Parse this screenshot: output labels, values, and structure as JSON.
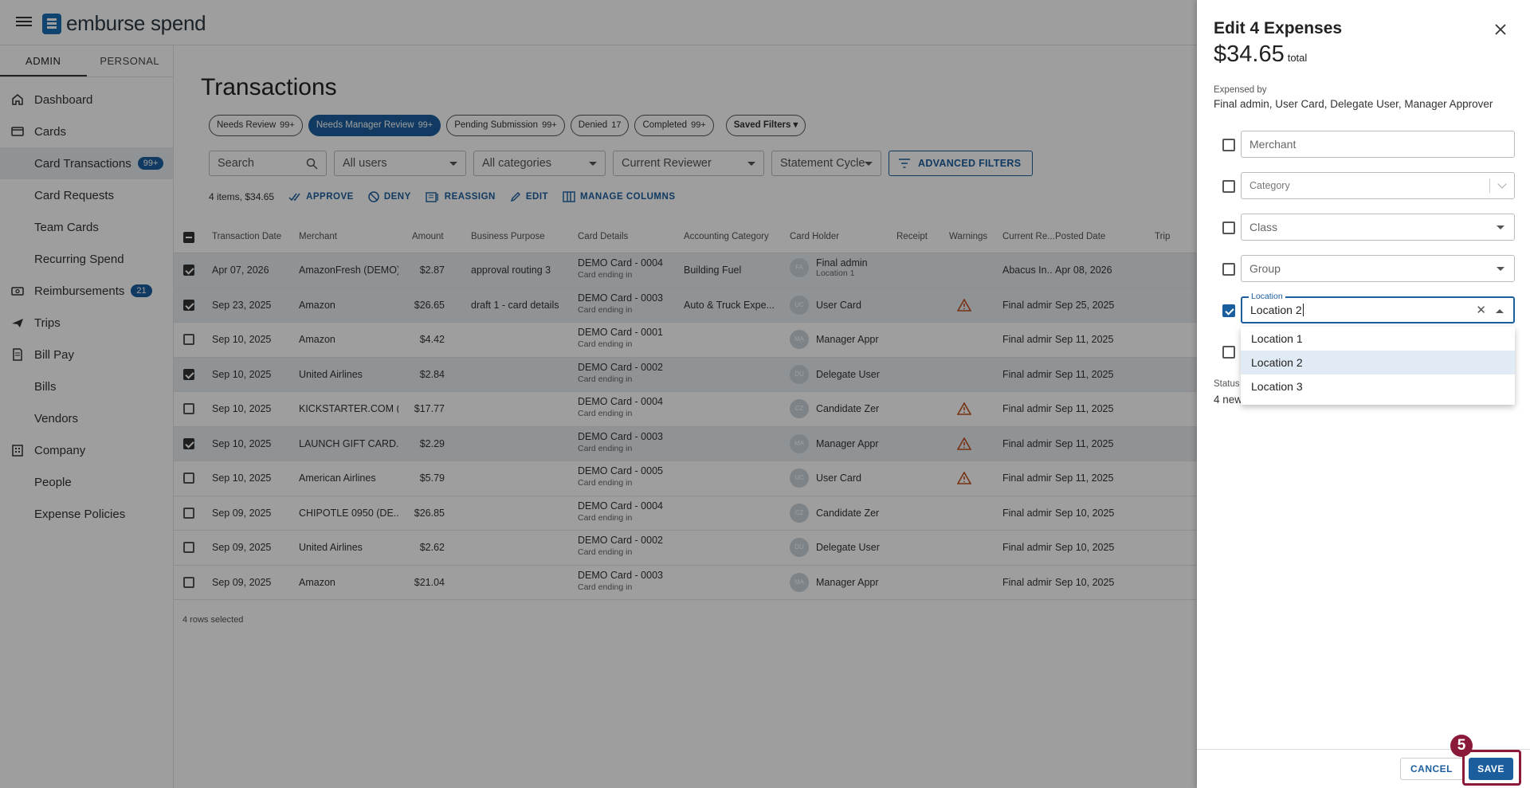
{
  "app": {
    "brand": "emburse spend"
  },
  "sidebar": {
    "tabs": [
      "ADMIN",
      "PERSONAL"
    ],
    "items": [
      {
        "label": "Dashboard",
        "icon": "home-icon"
      },
      {
        "label": "Cards",
        "icon": "card-icon"
      },
      {
        "label": "Card Transactions",
        "badge": "99+"
      },
      {
        "label": "Card Requests"
      },
      {
        "label": "Team Cards"
      },
      {
        "label": "Recurring Spend"
      },
      {
        "label": "Reimbursements",
        "icon": "money-icon",
        "badge": "21"
      },
      {
        "label": "Trips",
        "icon": "plane-icon"
      },
      {
        "label": "Bill Pay",
        "icon": "bill-icon"
      },
      {
        "label": "Bills"
      },
      {
        "label": "Vendors"
      },
      {
        "label": "Company",
        "icon": "building-icon"
      },
      {
        "label": "People"
      },
      {
        "label": "Expense Policies"
      }
    ]
  },
  "main": {
    "title": "Transactions",
    "chips": [
      {
        "label": "Needs Review",
        "count": "99+"
      },
      {
        "label": "Needs Manager Review",
        "count": "99+"
      },
      {
        "label": "Pending Submission",
        "count": "99+"
      },
      {
        "label": "Denied",
        "count": "17"
      },
      {
        "label": "Completed",
        "count": "99+"
      },
      {
        "label": "Saved Filters"
      }
    ],
    "filters": {
      "search_placeholder": "Search",
      "users": "All users",
      "categories": "All categories",
      "reviewer": "Current Reviewer",
      "cycle": "Statement Cycle",
      "advanced": "ADVANCED FILTERS"
    },
    "actions": {
      "summary": "4 items, $34.65",
      "approve": "APPROVE",
      "deny": "DENY",
      "reassign": "REASSIGN",
      "edit": "EDIT",
      "manage": "MANAGE COLUMNS"
    },
    "columns": [
      "Transaction Date",
      "Merchant",
      "Amount",
      "Business Purpose",
      "Card Details",
      "Accounting Category",
      "Card Holder",
      "Receipt",
      "Warnings",
      "Current Re...",
      "Posted Date",
      "Trip"
    ],
    "rows": [
      {
        "selected": true,
        "date": "Apr 07, 2026",
        "merchant": "AmazonFresh (DEMO)",
        "amount": "$2.87",
        "purpose": "approval routing 3",
        "card": "DEMO Card - 0004",
        "card_sub": "Card ending in",
        "category": "Building Fuel",
        "initials": "FA",
        "holder": "Final admin",
        "holder_sub": "Location 1",
        "warning": false,
        "reviewer": "Abacus In...",
        "posted": "Apr 08, 2026"
      },
      {
        "selected": true,
        "date": "Sep 23, 2025",
        "merchant": "Amazon",
        "amount": "$26.65",
        "purpose": "draft 1 - card details",
        "card": "DEMO Card - 0003",
        "card_sub": "Card ending in",
        "category": "Auto & Truck Expe...",
        "initials": "UC",
        "holder": "User Card",
        "holder_sub": "",
        "warning": true,
        "reviewer": "Final admin",
        "posted": "Sep 25, 2025"
      },
      {
        "selected": false,
        "date": "Sep 10, 2025",
        "merchant": "Amazon",
        "amount": "$4.42",
        "purpose": "",
        "card": "DEMO Card - 0001",
        "card_sub": "Card ending in",
        "category": "",
        "initials": "MA",
        "holder": "Manager Appr",
        "holder_sub": "",
        "warning": false,
        "reviewer": "Final admin",
        "posted": "Sep 11, 2025"
      },
      {
        "selected": true,
        "date": "Sep 10, 2025",
        "merchant": "United Airlines",
        "amount": "$2.84",
        "purpose": "",
        "card": "DEMO Card - 0002",
        "card_sub": "Card ending in",
        "category": "",
        "initials": "DU",
        "holder": "Delegate User",
        "holder_sub": "",
        "warning": false,
        "reviewer": "Final admin",
        "posted": "Sep 11, 2025"
      },
      {
        "selected": false,
        "date": "Sep 10, 2025",
        "merchant": "KICKSTARTER.COM (...",
        "amount": "$17.77",
        "purpose": "",
        "card": "DEMO Card - 0004",
        "card_sub": "Card ending in",
        "category": "",
        "initials": "CZ",
        "holder": "Candidate Zer",
        "holder_sub": "",
        "warning": true,
        "reviewer": "Final admin",
        "posted": "Sep 11, 2025"
      },
      {
        "selected": true,
        "date": "Sep 10, 2025",
        "merchant": "LAUNCH GIFT CARD...",
        "amount": "$2.29",
        "purpose": "",
        "card": "DEMO Card - 0003",
        "card_sub": "Card ending in",
        "category": "",
        "initials": "MA",
        "holder": "Manager Appr",
        "holder_sub": "",
        "warning": true,
        "reviewer": "Final admin",
        "posted": "Sep 11, 2025"
      },
      {
        "selected": false,
        "date": "Sep 10, 2025",
        "merchant": "American Airlines",
        "amount": "$5.79",
        "purpose": "",
        "card": "DEMO Card - 0005",
        "card_sub": "Card ending in",
        "category": "",
        "initials": "UC",
        "holder": "User Card",
        "holder_sub": "",
        "warning": true,
        "reviewer": "Final admin",
        "posted": "Sep 11, 2025"
      },
      {
        "selected": false,
        "date": "Sep 09, 2025",
        "merchant": "CHIPOTLE 0950 (DE...",
        "amount": "$26.85",
        "purpose": "",
        "card": "DEMO Card - 0004",
        "card_sub": "Card ending in",
        "category": "",
        "initials": "CZ",
        "holder": "Candidate Zer",
        "holder_sub": "",
        "warning": false,
        "reviewer": "Final admin",
        "posted": "Sep 10, 2025"
      },
      {
        "selected": false,
        "date": "Sep 09, 2025",
        "merchant": "United Airlines",
        "amount": "$2.62",
        "purpose": "",
        "card": "DEMO Card - 0002",
        "card_sub": "Card ending in",
        "category": "",
        "initials": "DU",
        "holder": "Delegate User",
        "holder_sub": "",
        "warning": false,
        "reviewer": "Final admin",
        "posted": "Sep 10, 2025"
      },
      {
        "selected": false,
        "date": "Sep 09, 2025",
        "merchant": "Amazon",
        "amount": "$21.04",
        "purpose": "",
        "card": "DEMO Card - 0003",
        "card_sub": "Card ending in",
        "category": "",
        "initials": "MA",
        "holder": "Manager Appr",
        "holder_sub": "",
        "warning": false,
        "reviewer": "Final admin",
        "posted": "Sep 10, 2025"
      }
    ],
    "rows_selected": "4 rows selected"
  },
  "panel": {
    "title": "Edit 4 Expenses",
    "total": "$34.65",
    "total_suffix": "total",
    "expensed_by_label": "Expensed by",
    "expensed_by": "Final admin, User Card, Delegate User, Manager Approver",
    "fields": {
      "merchant": "Merchant",
      "category": "Category",
      "class": "Class",
      "group": "Group",
      "location_label": "Location",
      "location_value": "Location 2"
    },
    "location_options": [
      "Location 1",
      "Location 2",
      "Location 3"
    ],
    "status_label": "Status",
    "status_value": "4 new",
    "cancel": "CANCEL",
    "save": "SAVE",
    "step": "5"
  },
  "colors": {
    "accent": "#1b5e9e",
    "highlight": "#8b1a3a",
    "warning": "#c0501f"
  }
}
